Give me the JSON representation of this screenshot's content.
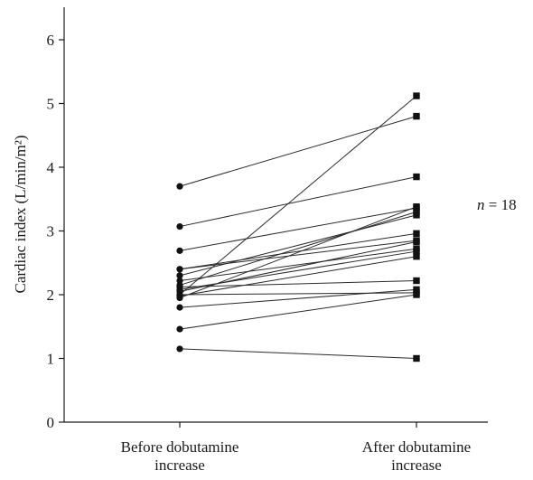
{
  "chart_data": {
    "type": "line",
    "title": "",
    "xlabel": "",
    "ylabel": "Cardiac index (L/min/m²)",
    "categories": [
      "Before dobutamine increase",
      "After dobutamine increase"
    ],
    "category_lines": [
      [
        "Before dobutamine",
        "increase"
      ],
      [
        "After dobutamine",
        "increase"
      ]
    ],
    "ylim": [
      0,
      6.5
    ],
    "yticks": [
      "0",
      "1",
      "2",
      "3",
      "4",
      "5",
      "6"
    ],
    "annotation": "n = 18",
    "annotation_parts": [
      "n",
      " = 18"
    ],
    "marker_before": "circle",
    "marker_after": "square",
    "series": [
      {
        "values": [
          3.7,
          4.8
        ]
      },
      {
        "values": [
          3.07,
          3.85
        ]
      },
      {
        "values": [
          2.69,
          3.36
        ]
      },
      {
        "values": [
          2.4,
          2.96
        ]
      },
      {
        "values": [
          2.4,
          2.85
        ]
      },
      {
        "values": [
          2.3,
          3.25
        ]
      },
      {
        "values": [
          2.22,
          2.72
        ]
      },
      {
        "values": [
          2.15,
          3.3
        ]
      },
      {
        "values": [
          2.12,
          2.22
        ]
      },
      {
        "values": [
          2.08,
          2.68
        ]
      },
      {
        "values": [
          2.05,
          2.83
        ]
      },
      {
        "values": [
          2.0,
          5.12
        ]
      },
      {
        "values": [
          2.0,
          2.03
        ]
      },
      {
        "values": [
          1.98,
          2.6
        ]
      },
      {
        "values": [
          1.95,
          3.38
        ]
      },
      {
        "values": [
          1.8,
          2.08
        ]
      },
      {
        "values": [
          1.46,
          2.0
        ]
      },
      {
        "values": [
          1.15,
          1.0
        ]
      }
    ]
  }
}
